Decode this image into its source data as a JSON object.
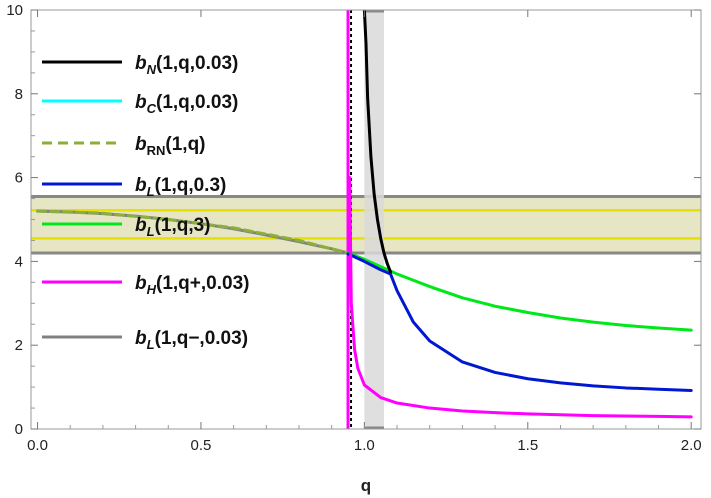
{
  "chart_data": {
    "type": "line",
    "title": "",
    "xlabel": "q",
    "ylabel": "",
    "xlim": [
      -0.02,
      2.03
    ],
    "ylim": [
      0,
      10
    ],
    "xticks": [
      0.0,
      0.5,
      1.0,
      1.5,
      2.0
    ],
    "xtick_labels": [
      "0.0",
      "0.5",
      "1.0",
      "1.5",
      "2.0"
    ],
    "yticks": [
      0,
      2,
      4,
      6,
      8,
      10
    ],
    "ytick_labels": [
      "0",
      "2",
      "4",
      "6",
      "8",
      "10"
    ],
    "grid": false,
    "legend_position": "top-left",
    "colors": {
      "bN": "#000000",
      "bC": "#00ffff",
      "bRN": "#8cae3c",
      "bL03": "#0018d0",
      "bL3": "#00e81a",
      "bH": "#ff00ff",
      "bLminus": "#808080",
      "band_fill": "#dddcb0",
      "band_edge": "#e8e000",
      "strip_fill": "#d9d9d9",
      "frame": "#888888"
    },
    "series": [
      {
        "key": "bN",
        "legend": {
          "pre": "b",
          "sub": "N",
          "post": "(1,q,0.03)"
        },
        "style": "solid",
        "x": [
          1.0,
          1.005,
          1.01,
          1.02,
          1.03,
          1.04,
          1.05,
          1.06,
          1.07,
          1.08
        ],
        "y": [
          10.0,
          9.2,
          7.9,
          6.5,
          5.6,
          5.0,
          4.55,
          4.2,
          3.95,
          3.75
        ]
      },
      {
        "key": "bC",
        "legend": {
          "pre": "b",
          "sub": "C",
          "post": "(1,q,0.03)"
        },
        "style": "solid",
        "x": [],
        "y": []
      },
      {
        "key": "bRN",
        "legend": {
          "pre": "b",
          "sub": "RN",
          "post": "(1,q)"
        },
        "style": "dashed",
        "x": [
          0.0,
          0.2,
          0.4,
          0.6,
          0.8,
          0.9,
          0.95
        ],
        "y": [
          5.2,
          5.15,
          5.0,
          4.8,
          4.5,
          4.3,
          4.2
        ]
      },
      {
        "key": "bL03",
        "legend": {
          "pre": "b",
          "sub": "L",
          "post": "(1,q,0.3)"
        },
        "style": "solid",
        "x": [
          0.95,
          1.0,
          1.05,
          1.08,
          1.1,
          1.15,
          1.2,
          1.3,
          1.4,
          1.5,
          1.6,
          1.7,
          1.8,
          1.9,
          2.0
        ],
        "y": [
          4.18,
          4.0,
          3.8,
          3.7,
          3.3,
          2.55,
          2.1,
          1.6,
          1.35,
          1.2,
          1.1,
          1.03,
          0.98,
          0.95,
          0.92
        ]
      },
      {
        "key": "bL3",
        "legend": {
          "pre": "b",
          "sub": "L",
          "post": "(1,q,3)"
        },
        "style": "solid",
        "x": [
          0.95,
          1.0,
          1.1,
          1.2,
          1.3,
          1.4,
          1.5,
          1.6,
          1.7,
          1.8,
          1.9,
          2.0
        ],
        "y": [
          4.2,
          4.05,
          3.7,
          3.4,
          3.13,
          2.93,
          2.78,
          2.65,
          2.55,
          2.47,
          2.41,
          2.36
        ]
      },
      {
        "key": "bH",
        "legend": {
          "pre": "b",
          "sub": "H",
          "post": "(1,q+,0.03)"
        },
        "style": "solid",
        "x": [
          0.955,
          0.96,
          0.97,
          0.98,
          1.0,
          1.05,
          1.1,
          1.2,
          1.3,
          1.4,
          1.5,
          1.6,
          1.7,
          1.8,
          1.9,
          2.0
        ],
        "y": [
          6.0,
          3.0,
          1.9,
          1.45,
          1.05,
          0.75,
          0.62,
          0.5,
          0.43,
          0.39,
          0.36,
          0.34,
          0.32,
          0.31,
          0.3,
          0.29
        ]
      },
      {
        "key": "bLminus",
        "legend": {
          "pre": "b",
          "sub": "L",
          "post": "(1,q−,0.03)"
        },
        "style": "solid",
        "x": [
          0.0,
          0.1,
          0.2,
          0.3,
          0.4,
          0.5,
          0.6,
          0.7,
          0.8,
          0.9,
          0.95
        ],
        "y": [
          5.2,
          5.18,
          5.14,
          5.08,
          5.0,
          4.9,
          4.78,
          4.63,
          4.47,
          4.3,
          4.2
        ]
      }
    ],
    "vertical_lines": [
      {
        "x": 0.95,
        "style": "dotted",
        "color": "#000000"
      },
      {
        "x": 0.95,
        "style": "solid",
        "color": "#ff00ff"
      }
    ],
    "shaded_x_range": {
      "x": [
        1.0,
        1.06
      ],
      "y": [
        0,
        10
      ]
    },
    "horizontal_band": {
      "y": [
        4.2,
        5.55
      ],
      "edge_lines": [
        4.55,
        5.22
      ]
    }
  }
}
